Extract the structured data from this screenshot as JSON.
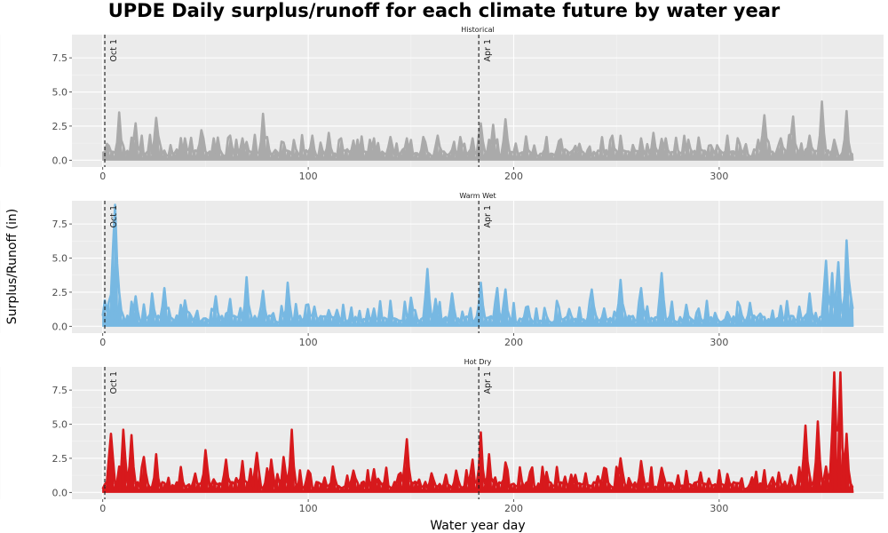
{
  "chart_data": {
    "type": "line",
    "title": "UPDE Daily surplus/runoff for each climate future by water year",
    "xlabel": "Water year day",
    "ylabel": "Surplus/Runoff (in)",
    "xlim": [
      -15,
      380
    ],
    "ylim": [
      -0.5,
      9.2
    ],
    "x_ticks": [
      0,
      100,
      200,
      300
    ],
    "x_tick_labels": [
      "0",
      "100",
      "200",
      "300"
    ],
    "y_ticks": [
      0,
      2.5,
      5,
      7.5
    ],
    "y_tick_labels": [
      "0.0",
      "2.5",
      "5.0",
      "7.5"
    ],
    "grid": true,
    "legend": "none",
    "reference_lines": [
      {
        "label": "Oct 1",
        "x": 1
      },
      {
        "label": "Apr 1",
        "x": 183
      }
    ],
    "panels": [
      {
        "name": "Historical",
        "color": "#aaaaaa",
        "peaks": [
          [
            2,
            1.2
          ],
          [
            8,
            3.5
          ],
          [
            16,
            2.7
          ],
          [
            26,
            3.1
          ],
          [
            40,
            1.6
          ],
          [
            48,
            2.2
          ],
          [
            54,
            1.6
          ],
          [
            62,
            1.8
          ],
          [
            68,
            1.6
          ],
          [
            78,
            3.4
          ],
          [
            88,
            1.3
          ],
          [
            102,
            1.8
          ],
          [
            110,
            2.0
          ],
          [
            116,
            1.6
          ],
          [
            124,
            1.5
          ],
          [
            132,
            1.6
          ],
          [
            140,
            1.7
          ],
          [
            148,
            1.6
          ],
          [
            156,
            1.7
          ],
          [
            163,
            1.8
          ],
          [
            174,
            1.7
          ],
          [
            180,
            1.6
          ],
          [
            184,
            2.7
          ],
          [
            190,
            2.6
          ],
          [
            196,
            3.0
          ],
          [
            206,
            1.2
          ],
          [
            222,
            1.4
          ],
          [
            232,
            1.2
          ],
          [
            248,
            1.8
          ],
          [
            262,
            1.6
          ],
          [
            268,
            2.0
          ],
          [
            274,
            1.6
          ],
          [
            285,
            1.5
          ],
          [
            296,
            1.1
          ],
          [
            310,
            1.2
          ],
          [
            322,
            3.3
          ],
          [
            330,
            1.6
          ],
          [
            336,
            3.2
          ],
          [
            344,
            1.8
          ],
          [
            350,
            4.3
          ],
          [
            356,
            1.5
          ],
          [
            362,
            3.6
          ]
        ]
      },
      {
        "name": "Warm Wet",
        "color": "#77b8e2",
        "peaks": [
          [
            1,
            1.9
          ],
          [
            5,
            5.8
          ],
          [
            6,
            8.9
          ],
          [
            8,
            2.5
          ],
          [
            16,
            2.2
          ],
          [
            24,
            2.4
          ],
          [
            30,
            2.8
          ],
          [
            40,
            1.9
          ],
          [
            55,
            2.2
          ],
          [
            62,
            2.0
          ],
          [
            70,
            3.6
          ],
          [
            78,
            2.6
          ],
          [
            90,
            3.2
          ],
          [
            100,
            1.6
          ],
          [
            114,
            1.2
          ],
          [
            132,
            1.3
          ],
          [
            150,
            2.1
          ],
          [
            158,
            4.2
          ],
          [
            162,
            2.0
          ],
          [
            170,
            2.4
          ],
          [
            184,
            3.2
          ],
          [
            192,
            2.8
          ],
          [
            196,
            2.7
          ],
          [
            206,
            1.4
          ],
          [
            222,
            1.4
          ],
          [
            238,
            2.7
          ],
          [
            252,
            3.4
          ],
          [
            262,
            2.8
          ],
          [
            272,
            3.9
          ],
          [
            290,
            1.3
          ],
          [
            310,
            1.5
          ],
          [
            330,
            1.5
          ],
          [
            344,
            2.4
          ],
          [
            352,
            4.8
          ],
          [
            355,
            3.9
          ],
          [
            358,
            4.7
          ],
          [
            362,
            6.3
          ],
          [
            364,
            2.3
          ]
        ]
      },
      {
        "name": "Hot Dry",
        "color": "#d7191c",
        "peaks": [
          [
            2,
            0.6
          ],
          [
            4,
            4.3
          ],
          [
            8,
            1.9
          ],
          [
            10,
            4.6
          ],
          [
            14,
            4.2
          ],
          [
            20,
            2.6
          ],
          [
            26,
            2.8
          ],
          [
            38,
            1.6
          ],
          [
            50,
            3.1
          ],
          [
            60,
            2.4
          ],
          [
            68,
            2.3
          ],
          [
            75,
            2.9
          ],
          [
            82,
            2.4
          ],
          [
            88,
            2.6
          ],
          [
            92,
            4.6
          ],
          [
            100,
            1.6
          ],
          [
            112,
            1.9
          ],
          [
            122,
            1.6
          ],
          [
            132,
            1.7
          ],
          [
            144,
            1.3
          ],
          [
            148,
            3.9
          ],
          [
            160,
            1.4
          ],
          [
            172,
            1.6
          ],
          [
            180,
            2.4
          ],
          [
            184,
            4.4
          ],
          [
            188,
            2.8
          ],
          [
            196,
            2.2
          ],
          [
            208,
            1.5
          ],
          [
            216,
            1.5
          ],
          [
            228,
            1.3
          ],
          [
            244,
            1.8
          ],
          [
            252,
            2.5
          ],
          [
            262,
            2.3
          ],
          [
            272,
            1.8
          ],
          [
            284,
            0.9
          ],
          [
            300,
            0.9
          ],
          [
            316,
            1.1
          ],
          [
            326,
            1.1
          ],
          [
            342,
            4.9
          ],
          [
            348,
            5.2
          ],
          [
            352,
            1.9
          ],
          [
            356,
            8.8
          ],
          [
            359,
            8.8
          ],
          [
            362,
            4.3
          ],
          [
            364,
            0.6
          ]
        ]
      }
    ]
  }
}
